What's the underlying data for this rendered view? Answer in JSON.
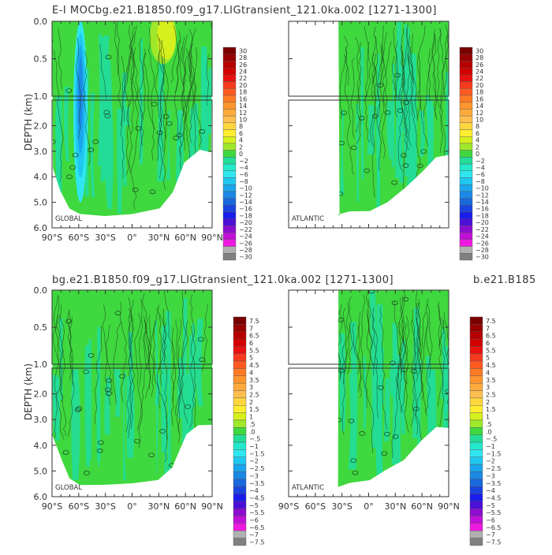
{
  "titles": {
    "top": "E-I MOCbg.e21.B1850.f09_g17.LIGtransient_121.0ka.002 [1271-1300]",
    "bottom_left": "bg.e21.B1850.f09_g17.LIGtransient_121.0ka.002 [1271-1300]",
    "bottom_right": "b.e21.B185"
  },
  "ylabel": "DEPTH (km)",
  "chart_data": [
    {
      "type": "heatmap",
      "panel": "E-I MOC global",
      "label": "GLOBAL",
      "x_ticks": [
        "90°S",
        "60°S",
        "30°S",
        "0°",
        "30°N",
        "60°N",
        "90°N"
      ],
      "y_ticks": [
        "0.0",
        "0.5",
        "1.0",
        "2.0",
        "3.0",
        "4.0",
        "5.0",
        "6.0"
      ],
      "xlim": [
        -90,
        90
      ],
      "ylim_km": [
        0,
        6
      ],
      "y_break_km": 1.0,
      "colorbar_ref": "top",
      "depth_extent_km": [
        [
          -90,
          3.7
        ],
        [
          -80,
          4.6
        ],
        [
          -70,
          5.3
        ],
        [
          -60,
          5.5
        ],
        [
          -30,
          5.5
        ],
        [
          0,
          5.5
        ],
        [
          30,
          5.2
        ],
        [
          45,
          4.6
        ],
        [
          60,
          3.5
        ],
        [
          75,
          3.0
        ],
        [
          90,
          3.0
        ]
      ],
      "features": [
        {
          "desc": "strong negative cell",
          "lat_range": [
            -66,
            -50
          ],
          "depth_range_km": [
            0,
            5.0
          ],
          "min_value": -16
        },
        {
          "desc": "positive surface cell",
          "lat_range": [
            20,
            50
          ],
          "depth_range_km": [
            0,
            0.6
          ],
          "max_value": 6
        }
      ]
    },
    {
      "type": "heatmap",
      "panel": "E-I MOC atlantic",
      "label": "ATLANTIC",
      "x_ticks": [],
      "xlim": [
        -90,
        90
      ],
      "ylim_km": [
        0,
        6
      ],
      "y_break_km": 1.0,
      "colorbar_ref": "top",
      "lat_start": -34,
      "depth_extent_km": [
        [
          -34,
          5.5
        ],
        [
          -20,
          5.4
        ],
        [
          0,
          5.3
        ],
        [
          20,
          5.0
        ],
        [
          40,
          4.5
        ],
        [
          60,
          3.8
        ],
        [
          75,
          3.2
        ],
        [
          90,
          3.2
        ]
      ]
    },
    {
      "type": "heatmap",
      "panel": "control global",
      "label": "GLOBAL",
      "x_ticks": [
        "90°S",
        "60°S",
        "30°S",
        "0°",
        "30°N",
        "60°N",
        "90°N"
      ],
      "xlim": [
        -90,
        90
      ],
      "ylim_km": [
        0,
        6
      ],
      "y_break_km": 1.0,
      "colorbar_ref": "bottom",
      "depth_extent_km": [
        [
          -90,
          3.5
        ],
        [
          -80,
          4.6
        ],
        [
          -70,
          5.3
        ],
        [
          -60,
          5.5
        ],
        [
          -30,
          5.5
        ],
        [
          0,
          5.5
        ],
        [
          30,
          5.4
        ],
        [
          45,
          4.8
        ],
        [
          60,
          3.6
        ],
        [
          75,
          3.2
        ],
        [
          90,
          3.2
        ]
      ]
    },
    {
      "type": "heatmap",
      "panel": "control atlantic",
      "label": "ATLANTIC",
      "x_ticks": [
        "90°S",
        "60°S",
        "30°S",
        "0°",
        "30°N",
        "60°N",
        "90°N"
      ],
      "xlim": [
        -90,
        90
      ],
      "ylim_km": [
        0,
        6
      ],
      "y_break_km": 1.0,
      "colorbar_ref": "bottom",
      "lat_start": -34,
      "depth_extent_km": [
        [
          -34,
          5.6
        ],
        [
          -20,
          5.5
        ],
        [
          0,
          5.4
        ],
        [
          20,
          5.0
        ],
        [
          40,
          4.6
        ],
        [
          60,
          3.8
        ],
        [
          75,
          3.3
        ],
        [
          90,
          3.3
        ]
      ]
    }
  ],
  "colorbars": {
    "top": {
      "labels": [
        "30",
        "28",
        "26",
        "24",
        "22",
        "20",
        "18",
        "16",
        "14",
        "12",
        "10",
        "8",
        "6",
        "4",
        "2",
        "0",
        "−2",
        "−4",
        "−6",
        "−8",
        "−10",
        "−12",
        "−14",
        "−16",
        "−18",
        "−20",
        "−22",
        "−24",
        "−26",
        "−28",
        "−30"
      ],
      "colors": [
        "#7a0000",
        "#990000",
        "#b80000",
        "#d40000",
        "#e81010",
        "#f53a1f",
        "#ff5a20",
        "#ff7a25",
        "#ff952e",
        "#ffaa3c",
        "#ffbf50",
        "#ffd640",
        "#ffee30",
        "#d6f01e",
        "#9fe82a",
        "#3fd83f",
        "#22dd99",
        "#25e8cc",
        "#30e6f0",
        "#20c8f0",
        "#1aa6ec",
        "#1b88e6",
        "#1968dc",
        "#1a44e0",
        "#1a1cec",
        "#4b10d6",
        "#8c0cd0",
        "#c010d8",
        "#ee1ae0",
        "#b0b0b0",
        "#808080"
      ]
    },
    "bottom": {
      "labels": [
        "7.5",
        "7",
        "6.5",
        "6",
        "5.5",
        "5",
        "4.5",
        "4",
        "3.5",
        "3",
        "2.5",
        "2",
        "1.5",
        "1",
        ".5",
        ".0",
        "−.5",
        "−1",
        "−1.5",
        "−2",
        "−2.5",
        "−3",
        "−3.5",
        "−4",
        "−4.5",
        "−5",
        "−5.5",
        "−6",
        "−6.5",
        "−7",
        "−7.5"
      ],
      "colors": [
        "#7a0000",
        "#990000",
        "#b80000",
        "#d40000",
        "#e81010",
        "#f53a1f",
        "#ff5a20",
        "#ff7a25",
        "#ff952e",
        "#ffaa3c",
        "#ffbf50",
        "#ffd640",
        "#ffee30",
        "#d6f01e",
        "#9fe82a",
        "#3fd83f",
        "#22dd99",
        "#25e8cc",
        "#30e6f0",
        "#20c8f0",
        "#1aa6ec",
        "#1b88e6",
        "#1968dc",
        "#1a44e0",
        "#1a1cec",
        "#4b10d6",
        "#8c0cd0",
        "#c010d8",
        "#ee1ae0",
        "#b0b0b0",
        "#808080"
      ]
    }
  },
  "palette": {
    "field_green": "#3fd83f",
    "field_teal": "#22dd99",
    "contour": "#1a3a1a",
    "frame": "#333333"
  }
}
